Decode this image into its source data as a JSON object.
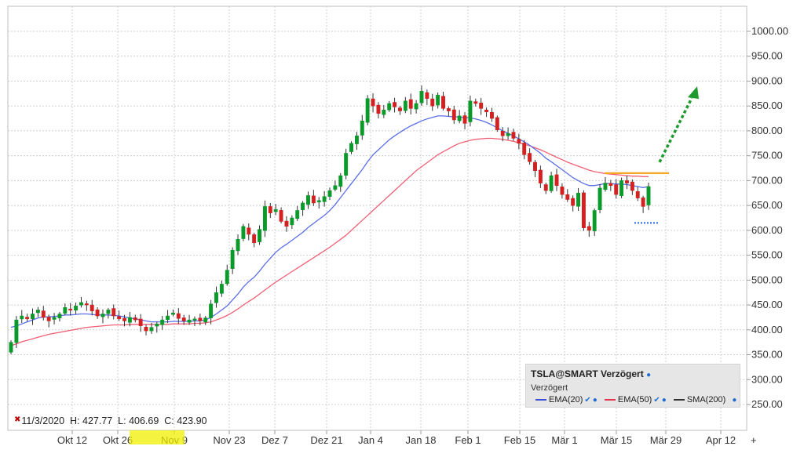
{
  "chart_data": {
    "type": "candlestick",
    "symbol": "TSLA@SMART Verzögert",
    "subtitle": "Verzögert",
    "ohlc_readout": {
      "date": "11/3/2020",
      "H": "427.77",
      "L": "406.69",
      "C": "423.90"
    },
    "y_ticks": [
      "1000.00",
      "950.00",
      "900.00",
      "850.00",
      "800.00",
      "750.00",
      "700.00",
      "650.00",
      "600.00",
      "550.00",
      "500.00",
      "450.00",
      "400.00",
      "350.00",
      "300.00",
      "250.00"
    ],
    "y_range": [
      250,
      1000
    ],
    "x_ticks": [
      "Okt 12",
      "Okt 26",
      "Nov 9",
      "Nov 23",
      "Dez 7",
      "Dez 21",
      "Jan 4",
      "Jan 18",
      "Feb 1",
      "Feb 15",
      "Mär 1",
      "Mär 15",
      "Mär 29",
      "Apr 12"
    ],
    "highlight_label": "11/3/2020",
    "closes": [
      375,
      420,
      428,
      422,
      432,
      440,
      425,
      418,
      425,
      432,
      445,
      440,
      448,
      455,
      450,
      438,
      428,
      432,
      440,
      428,
      422,
      418,
      425,
      420,
      408,
      398,
      405,
      412,
      420,
      428,
      434,
      423,
      418,
      420,
      422,
      418,
      424,
      452,
      475,
      492,
      520,
      560,
      582,
      608,
      592,
      575,
      602,
      648,
      635,
      642,
      618,
      608,
      625,
      640,
      655,
      670,
      655,
      660,
      668,
      680,
      690,
      710,
      755,
      775,
      790,
      820,
      865,
      850,
      835,
      842,
      855,
      848,
      840,
      860,
      845,
      855,
      880,
      865,
      850,
      872,
      845,
      840,
      822,
      830,
      815,
      860,
      855,
      845,
      838,
      825,
      802,
      790,
      795,
      785,
      775,
      752,
      738,
      720,
      695,
      680,
      710,
      690,
      672,
      662,
      650,
      675,
      605,
      600,
      640,
      685,
      695,
      690,
      672,
      700,
      695,
      680,
      665,
      648,
      688
    ],
    "emas": {
      "EMA(20)": [
        405,
        408,
        412,
        416,
        420,
        424,
        426,
        426,
        427,
        428,
        430,
        430,
        431,
        432,
        432,
        431,
        430,
        430,
        430,
        429,
        428,
        426,
        424,
        422,
        420,
        418,
        416,
        416,
        416,
        416,
        417,
        417,
        417,
        417,
        418,
        418,
        420,
        425,
        432,
        440,
        448,
        460,
        472,
        486,
        497,
        506,
        518,
        532,
        544,
        556,
        565,
        572,
        580,
        588,
        596,
        606,
        614,
        622,
        630,
        640,
        652,
        666,
        680,
        694,
        708,
        722,
        738,
        752,
        762,
        772,
        782,
        790,
        797,
        804,
        810,
        815,
        820,
        824,
        827,
        830,
        830,
        829,
        828,
        828,
        826,
        826,
        824,
        821,
        817,
        812,
        806,
        800,
        795,
        790,
        784,
        778,
        771,
        763,
        755,
        745,
        738,
        730,
        722,
        714,
        706,
        700,
        694,
        690,
        690,
        692,
        694,
        694,
        693,
        693,
        692,
        690,
        688,
        686,
        688
      ],
      "EMA(50)": [
        368,
        372,
        376,
        379,
        382,
        385,
        388,
        391,
        393,
        395,
        397,
        399,
        401,
        403,
        405,
        406,
        407,
        408,
        409,
        410,
        410,
        410,
        411,
        411,
        411,
        411,
        411,
        411,
        411,
        411,
        412,
        412,
        412,
        412,
        413,
        413,
        414,
        416,
        420,
        424,
        429,
        435,
        442,
        450,
        457,
        464,
        472,
        480,
        488,
        496,
        503,
        510,
        517,
        524,
        531,
        538,
        545,
        552,
        559,
        566,
        574,
        582,
        590,
        600,
        610,
        620,
        630,
        640,
        650,
        660,
        670,
        680,
        690,
        700,
        710,
        720,
        728,
        736,
        744,
        752,
        758,
        764,
        770,
        775,
        778,
        781,
        783,
        784,
        785,
        785,
        784,
        783,
        781,
        779,
        776,
        773,
        770,
        766,
        762,
        757,
        752,
        747,
        742,
        737,
        733,
        729,
        725,
        721,
        718,
        716,
        714,
        713,
        712,
        711,
        710,
        709,
        709,
        708,
        708
      ]
    },
    "series": [
      {
        "name": "EMA(20)",
        "color": "#5a6ee8"
      },
      {
        "name": "EMA(50)",
        "color": "#f06075"
      },
      {
        "name": "SMA(200)",
        "color": "#333333"
      }
    ],
    "annotations": {
      "resistance": 715,
      "support": 615,
      "arrow_target": 880
    }
  },
  "legend": {
    "title": "TSLA@SMART Verzögert",
    "subtitle": "Verzögert",
    "items": [
      "EMA(20)",
      "EMA(50)",
      "SMA(200)"
    ]
  },
  "nav_glyph": "+"
}
